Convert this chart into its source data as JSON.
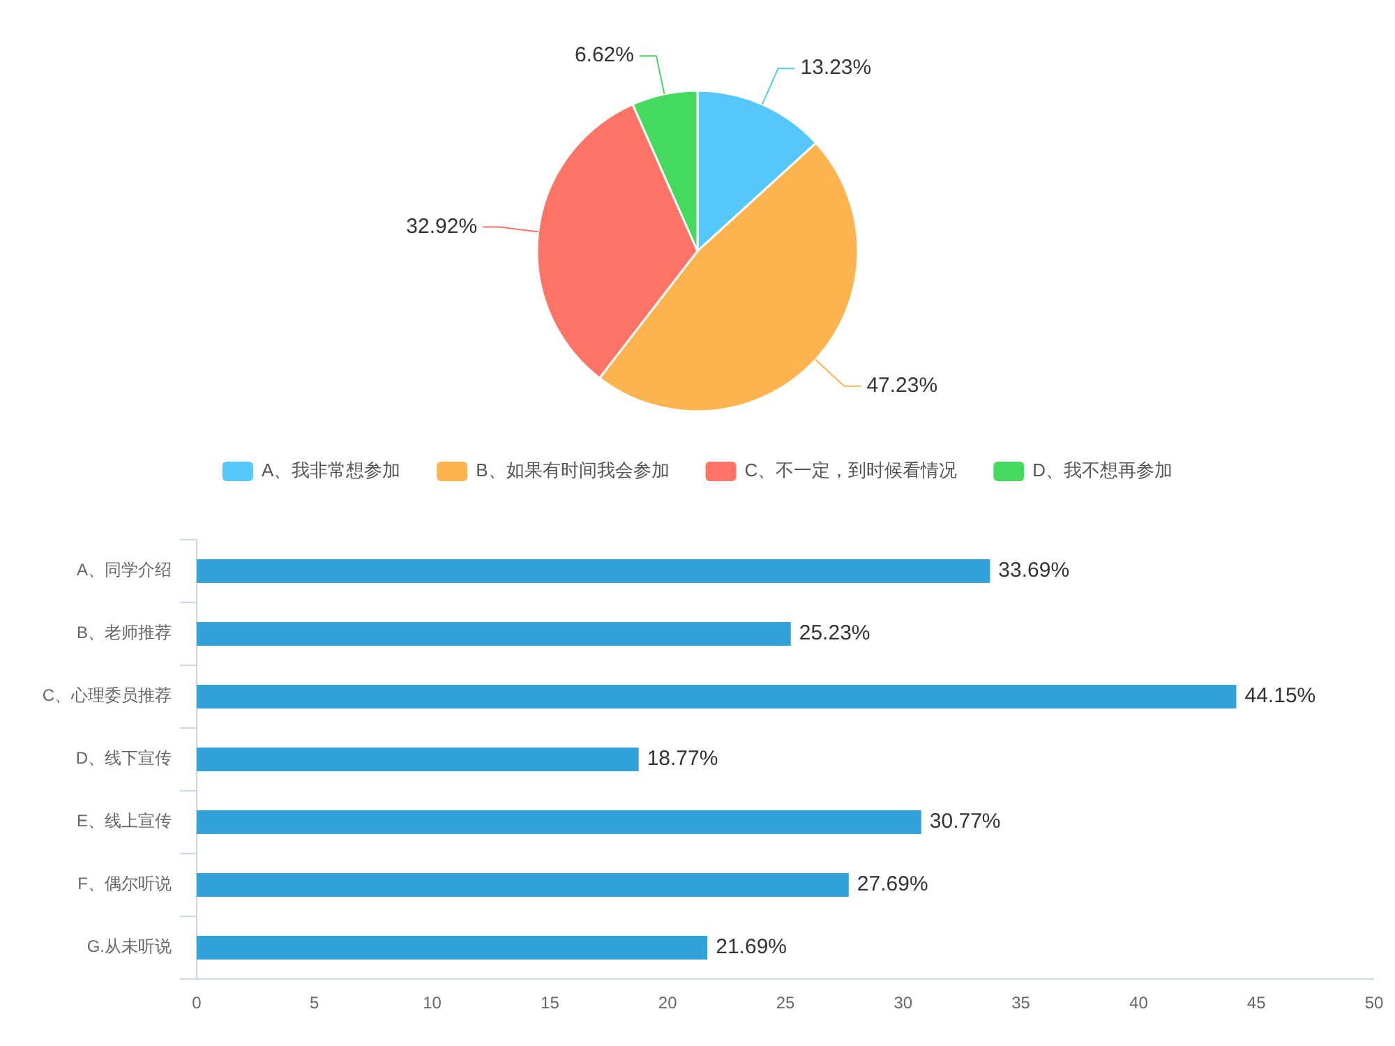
{
  "chart_data": [
    {
      "type": "pie",
      "categories": [
        "A、我非常想参加",
        "B、如果有时间我会参加",
        "C、不一定，到时候看情况",
        "D、我不想再参加"
      ],
      "values": [
        13.23,
        47.23,
        32.92,
        6.62
      ],
      "colors": [
        "#56c7f9",
        "#fdb44e",
        "#fd7466",
        "#45d95e"
      ],
      "value_labels": [
        "13.23%",
        "47.23%",
        "32.92%",
        "6.62%"
      ],
      "legend": "bottom"
    },
    {
      "type": "bar",
      "orientation": "horizontal",
      "categories": [
        "A、同学介绍",
        "B、老师推荐",
        "C、心理委员推荐",
        "D、线下宣传",
        "E、线上宣传",
        "F、偶尔听说",
        "G.从未听说"
      ],
      "values": [
        33.69,
        25.23,
        44.15,
        18.77,
        30.77,
        27.69,
        21.69
      ],
      "color": "#34a2da",
      "value_labels": [
        "33.69%",
        "25.23%",
        "44.15%",
        "18.77%",
        "30.77%",
        "27.69%",
        "21.69%"
      ],
      "xlim": [
        0,
        50
      ],
      "xticks": [
        0,
        5,
        10,
        15,
        20,
        25,
        30,
        35,
        40,
        45,
        50
      ]
    }
  ]
}
